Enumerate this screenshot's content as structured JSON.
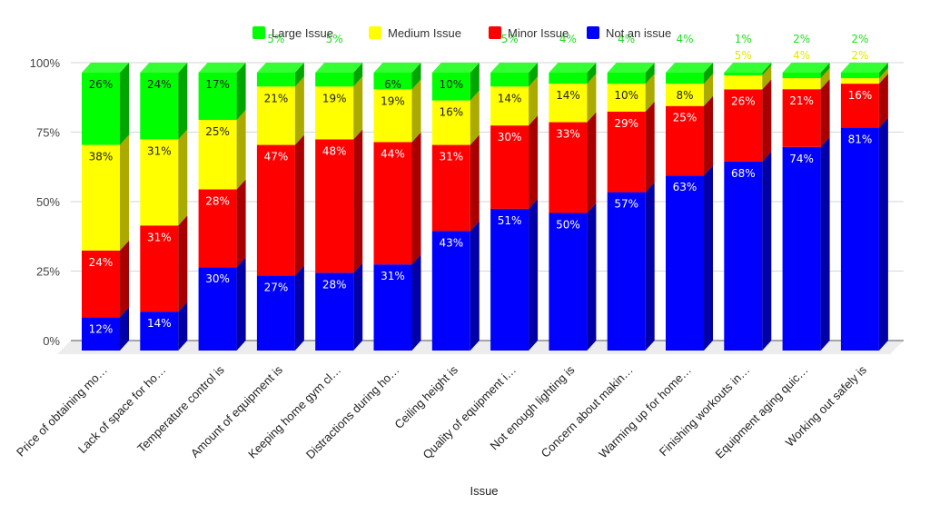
{
  "chart_data": {
    "type": "bar",
    "stacked": true,
    "percent_stacked": true,
    "three_d": true,
    "title": "",
    "xlabel": "Issue",
    "ylabel": "",
    "ylim": [
      0,
      100
    ],
    "yticks": [
      "0%",
      "25%",
      "50%",
      "75%",
      "100%"
    ],
    "grid": true,
    "legend_position": "top",
    "categories": [
      "Price of obtaining mo…",
      "Lack of space for ho…",
      "Temperature control is",
      "Amount of equipment is",
      "Keeping home gym cl…",
      "Distractions during ho…",
      "Ceiling height is",
      "Quality of equipment i…",
      "Not enough lighting is",
      "Concern about makin…",
      "Warming up for home…",
      "Finishing workouts in…",
      "Equipment aging quic…",
      "Working out safely is"
    ],
    "series": [
      {
        "name": "Not an issue",
        "color": "#0000ff",
        "side": "#0000a6",
        "label_color": "#ffffff",
        "values": [
          12,
          14,
          30,
          27,
          28,
          31,
          43,
          51,
          50,
          57,
          63,
          68,
          74,
          81
        ]
      },
      {
        "name": "Minor Issue",
        "color": "#ff0000",
        "side": "#a80000",
        "label_color": "#ffffff",
        "values": [
          24,
          31,
          28,
          47,
          48,
          44,
          31,
          30,
          33,
          29,
          25,
          26,
          21,
          16
        ]
      },
      {
        "name": "Medium Issue",
        "color": "#ffff00",
        "side": "#aaaa00",
        "label_color": "#222222",
        "outside_label_color": "#e6e600",
        "values": [
          38,
          31,
          25,
          21,
          19,
          19,
          16,
          14,
          14,
          10,
          8,
          5,
          4,
          2
        ]
      },
      {
        "name": "Large Issue",
        "color": "#00ff00",
        "side": "#00a600",
        "top": "#33ff33",
        "label_color": "#222222",
        "outside_label_color": "#22dd22",
        "values": [
          26,
          24,
          17,
          5,
          5,
          6,
          10,
          5,
          4,
          4,
          4,
          1,
          2,
          2
        ]
      }
    ],
    "legend_order": [
      "Large Issue",
      "Medium Issue",
      "Minor Issue",
      "Not an issue"
    ]
  }
}
